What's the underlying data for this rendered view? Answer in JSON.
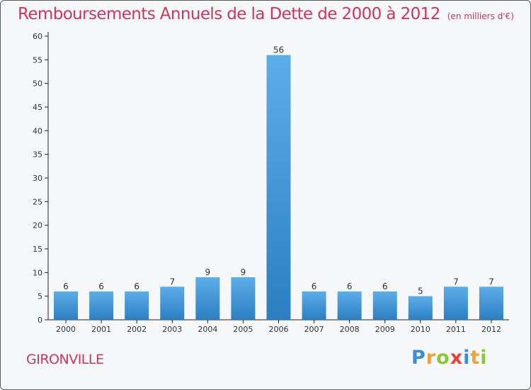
{
  "title": "Remboursements Annuels de la Dette de 2000 à 2012",
  "unit_note": "(en milliers d'€)",
  "commune": "GIRONVILLE",
  "logo": {
    "text": "Proxiti",
    "letters": [
      {
        "ch": "P",
        "color": "#3c8fd6"
      },
      {
        "ch": "r",
        "color": "#f0a23a"
      },
      {
        "ch": "o",
        "color": "#8cc63f"
      },
      {
        "ch": "x",
        "color": "#e8413a"
      },
      {
        "ch": "i",
        "color": "#3c8fd6"
      },
      {
        "ch": "t",
        "color": "#f0a23a"
      },
      {
        "ch": "i",
        "color": "#8cc63f"
      }
    ]
  },
  "colors": {
    "bar_top": "#5dade8",
    "bar_bottom": "#2b7fc2",
    "title": "#c8375c"
  },
  "chart_data": {
    "type": "bar",
    "title": "Remboursements Annuels de la Dette de 2000 à 2012",
    "xlabel": "",
    "ylabel": "",
    "categories": [
      "2000",
      "2001",
      "2002",
      "2003",
      "2004",
      "2005",
      "2006",
      "2007",
      "2008",
      "2009",
      "2010",
      "2011",
      "2012"
    ],
    "values": [
      6,
      6,
      6,
      7,
      9,
      9,
      56,
      6,
      6,
      6,
      5,
      7,
      7
    ],
    "ylim": [
      0,
      60
    ],
    "yticks": [
      0,
      5,
      10,
      15,
      20,
      25,
      30,
      35,
      40,
      45,
      50,
      55,
      60
    ],
    "grid": false,
    "data_labels": true
  }
}
